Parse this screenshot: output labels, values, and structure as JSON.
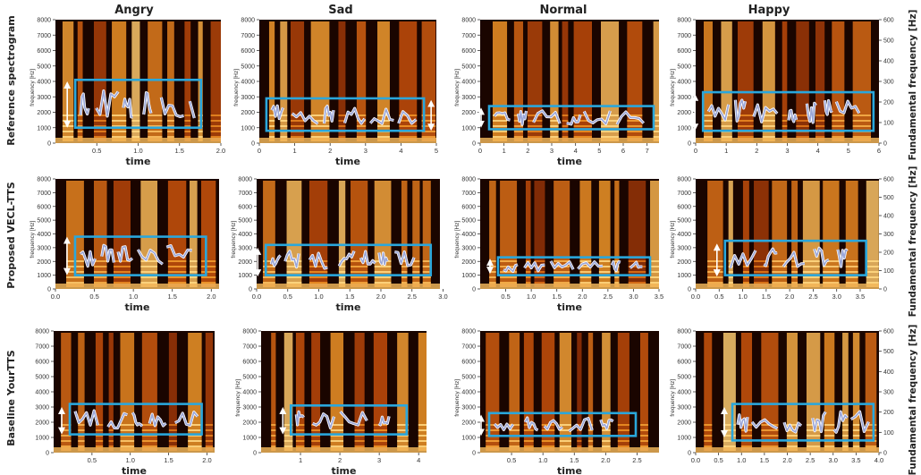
{
  "figure": {
    "columns": [
      "Angry",
      "Sad",
      "Normal",
      "Happy"
    ],
    "rows": [
      "Reference spectrogram",
      "Proposed VECL-TTS",
      "Baseline YourTTS"
    ],
    "right_axis_label": "Fundamental frequency [Hz]",
    "x_label": "time",
    "y_label": "frequency [Hz]",
    "colors": {
      "highlight_box": "#2aa7dc",
      "f0_contour": "#9aa6d8",
      "spectrogram_dark": "#1a0500",
      "spectrogram_bright": "#ffd278"
    }
  },
  "chart_data": [
    {
      "type": "heatmap",
      "row": "Reference spectrogram",
      "column": "Angry",
      "ylim": [
        0,
        8000
      ],
      "yticks": [
        "0",
        "1000",
        "2000",
        "3000",
        "4000",
        "5000",
        "6000",
        "7000",
        "8000"
      ],
      "xlim": [
        0,
        2.0
      ],
      "xticks": [
        "0.5",
        "1.0",
        "1.5",
        "2.0"
      ],
      "xlabel": "time",
      "ylabel": "frequency [Hz]",
      "f0_range": [
        1000,
        4100
      ],
      "arrow_range": [
        1000,
        4000
      ]
    },
    {
      "type": "heatmap",
      "row": "Reference spectrogram",
      "column": "Sad",
      "ylim": [
        0,
        8000
      ],
      "yticks": [
        "0",
        "1000",
        "2000",
        "3000",
        "4000",
        "5000",
        "6000",
        "7000",
        "8000"
      ],
      "xlim": [
        0,
        5
      ],
      "xticks": [
        "0",
        "1",
        "2",
        "3",
        "4",
        "5"
      ],
      "xlabel": "time",
      "ylabel": "frequency [Hz]",
      "f0_range": [
        800,
        2900
      ],
      "arrow_range": [
        800,
        2800
      ]
    },
    {
      "type": "heatmap",
      "row": "Reference spectrogram",
      "column": "Normal",
      "ylim": [
        0,
        8000
      ],
      "yticks": [
        "0",
        "1000",
        "2000",
        "3000",
        "4000",
        "5000",
        "6000",
        "7000",
        "8000"
      ],
      "xlim": [
        0,
        7.5
      ],
      "xticks": [
        "0",
        "1",
        "2",
        "3",
        "4",
        "5",
        "6",
        "7"
      ],
      "xlabel": "time",
      "ylabel": "frequency [Hz]",
      "f0_range": [
        900,
        2400
      ],
      "arrow_range": [
        1000,
        2300
      ]
    },
    {
      "type": "heatmap",
      "row": "Reference spectrogram",
      "column": "Happy",
      "ylim": [
        0,
        8000
      ],
      "yticks": [
        "0",
        "1000",
        "2000",
        "3000",
        "4000",
        "5000",
        "6000",
        "7000",
        "8000"
      ],
      "xlim": [
        0,
        6
      ],
      "xticks": [
        "0",
        "1",
        "2",
        "3",
        "4",
        "5",
        "6"
      ],
      "xlabel": "",
      "ylabel": "frequency [Hz]",
      "y2lim": [
        0,
        600
      ],
      "y2ticks": [
        "0",
        "100",
        "200",
        "300",
        "400",
        "500",
        "600"
      ],
      "f0_range": [
        800,
        3300
      ],
      "arrow_range": [
        800,
        3200
      ]
    },
    {
      "type": "heatmap",
      "row": "Proposed VECL-TTS",
      "column": "Angry",
      "ylim": [
        0,
        8000
      ],
      "yticks": [
        "0",
        "1000",
        "2000",
        "3000",
        "4000",
        "5000",
        "6000",
        "7000",
        "8000"
      ],
      "xlim": [
        0,
        2.1
      ],
      "xticks": [
        "0.0",
        "0.5",
        "1.0",
        "1.5",
        "2.0"
      ],
      "xlabel": "time",
      "ylabel": "frequency [Hz]",
      "f0_range": [
        1000,
        3800
      ],
      "arrow_range": [
        1000,
        3800
      ]
    },
    {
      "type": "heatmap",
      "row": "Proposed VECL-TTS",
      "column": "Sad",
      "ylim": [
        0,
        8000
      ],
      "yticks": [
        "0",
        "1000",
        "2000",
        "3000",
        "4000",
        "5000",
        "6000",
        "7000",
        "8000"
      ],
      "xlim": [
        0,
        2.95
      ],
      "xticks": [
        "0.0",
        "0.5",
        "1.0",
        "1.5",
        "2.0",
        "2.5",
        "3.0"
      ],
      "xlabel": "time",
      "ylabel": "frequency [Hz]",
      "f0_range": [
        1000,
        3200
      ],
      "arrow_range": [
        900,
        3000
      ]
    },
    {
      "type": "heatmap",
      "row": "Proposed VECL-TTS",
      "column": "Normal",
      "ylim": [
        0,
        8000
      ],
      "yticks": [
        "0",
        "1000",
        "2000",
        "3000",
        "4000",
        "5000",
        "6000",
        "7000",
        "8000"
      ],
      "xlim": [
        0,
        3.5
      ],
      "xticks": [
        "0.5",
        "1.0",
        "1.5",
        "2.0",
        "2.5",
        "3.0",
        "3.5"
      ],
      "xlabel": "time",
      "ylabel": "frequency [Hz]",
      "f0_range": [
        1000,
        2300
      ],
      "arrow_range": [
        1100,
        2200
      ]
    },
    {
      "type": "heatmap",
      "row": "Proposed VECL-TTS",
      "column": "Happy",
      "ylim": [
        0,
        8000
      ],
      "yticks": [
        "0",
        "1000",
        "2000",
        "3000",
        "4000",
        "5000",
        "6000",
        "7000",
        "8000"
      ],
      "xlim": [
        0,
        3.9
      ],
      "xticks": [
        "0.0",
        "0.5",
        "1.0",
        "1.5",
        "2.0",
        "2.5",
        "3.0",
        "3.5"
      ],
      "xlabel": "",
      "ylabel": "frequency [Hz]",
      "y2lim": [
        0,
        600
      ],
      "y2ticks": [
        "0",
        "100",
        "200",
        "300",
        "400",
        "500",
        "600"
      ],
      "f0_range": [
        1000,
        3500
      ],
      "arrow_range": [
        900,
        3300
      ]
    },
    {
      "type": "heatmap",
      "row": "Baseline YourTTS",
      "column": "Angry",
      "ylim": [
        0,
        8000
      ],
      "yticks": [
        "0",
        "1000",
        "2000",
        "3000",
        "4000",
        "5000",
        "6000",
        "7000",
        "8000"
      ],
      "xlim": [
        0,
        2.1
      ],
      "xticks": [
        "0.5",
        "1.0",
        "1.5",
        "2.0"
      ],
      "xlabel": "time",
      "ylabel": "",
      "f0_range": [
        1200,
        3200
      ],
      "arrow_range": [
        1200,
        3000
      ]
    },
    {
      "type": "heatmap",
      "row": "Baseline YourTTS",
      "column": "Sad",
      "ylim": [
        0,
        8000
      ],
      "yticks": [
        "0",
        "1000",
        "2000",
        "3000",
        "4000",
        "5000",
        "6000",
        "7000",
        "8000"
      ],
      "xlim": [
        0,
        4.2
      ],
      "xticks": [
        "1",
        "2",
        "3",
        "4"
      ],
      "xlabel": "time",
      "ylabel": "frequency [Hz]",
      "f0_range": [
        1200,
        3100
      ],
      "arrow_range": [
        1200,
        3000
      ]
    },
    {
      "type": "heatmap",
      "row": "Baseline YourTTS",
      "column": "Normal",
      "ylim": [
        0,
        8000
      ],
      "yticks": [
        "0",
        "1000",
        "2000",
        "3000",
        "4000",
        "5000",
        "6000",
        "7000",
        "8000"
      ],
      "xlim": [
        0,
        2.85
      ],
      "xticks": [
        "0.5",
        "1.0",
        "1.5",
        "2.0",
        "2.5"
      ],
      "xlabel": "time",
      "ylabel": "frequency [Hz]",
      "f0_range": [
        1100,
        2600
      ],
      "arrow_range": [
        1100,
        2500
      ]
    },
    {
      "type": "heatmap",
      "row": "Baseline YourTTS",
      "column": "Happy",
      "ylim": [
        0,
        8000
      ],
      "yticks": [
        "0",
        "1000",
        "2000",
        "3000",
        "4000",
        "5000",
        "6000",
        "7000",
        "8000"
      ],
      "xlim": [
        0,
        4.0
      ],
      "xticks": [
        "0.0",
        "0.5",
        "1.0",
        "1.5",
        "2.0",
        "2.5",
        "3.0",
        "3.5",
        "4.0"
      ],
      "xlabel": "",
      "ylabel": "frequency [Hz]",
      "y2lim": [
        0,
        600
      ],
      "y2ticks": [
        "0",
        "100",
        "200",
        "300",
        "400",
        "500",
        "600"
      ],
      "f0_range": [
        800,
        3200
      ],
      "arrow_range": [
        1000,
        3000
      ]
    }
  ]
}
